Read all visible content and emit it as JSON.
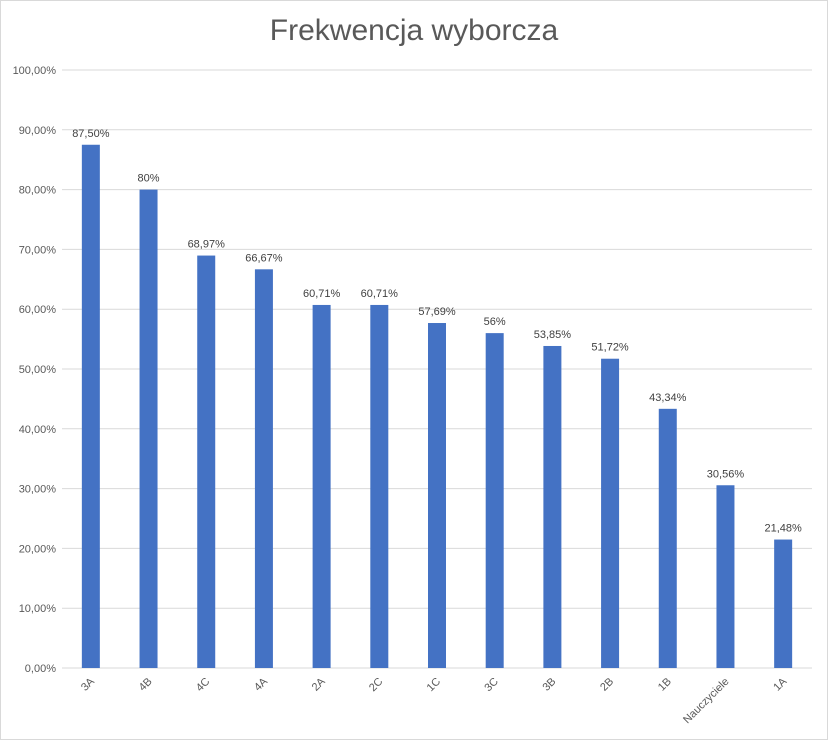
{
  "chart_data": {
    "type": "bar",
    "title": "Frekwencja wyborcza",
    "categories": [
      "3A",
      "4B",
      "4C",
      "4A",
      "2A",
      "2C",
      "1C",
      "3C",
      "3B",
      "2B",
      "1B",
      "Nauczyciele",
      "1A"
    ],
    "values": [
      87.5,
      80,
      68.97,
      66.67,
      60.71,
      60.71,
      57.69,
      56,
      53.85,
      51.72,
      43.34,
      30.56,
      21.48
    ],
    "data_labels": [
      "87,50%",
      "80%",
      "68,97%",
      "66,67%",
      "60,71%",
      "60,71%",
      "57,69%",
      "56%",
      "53,85%",
      "51,72%",
      "43,34%",
      "30,56%",
      "21,48%"
    ],
    "y_ticks": [
      0,
      10,
      20,
      30,
      40,
      50,
      60,
      70,
      80,
      90,
      100
    ],
    "y_tick_labels": [
      "0,00%",
      "10,00%",
      "20,00%",
      "30,00%",
      "40,00%",
      "50,00%",
      "60,00%",
      "70,00%",
      "80,00%",
      "90,00%",
      "100,00%"
    ],
    "ylim": [
      0,
      100
    ],
    "grid": true,
    "legend": false,
    "bar_color": "#4472c4",
    "grid_color": "#d9d9d9"
  }
}
